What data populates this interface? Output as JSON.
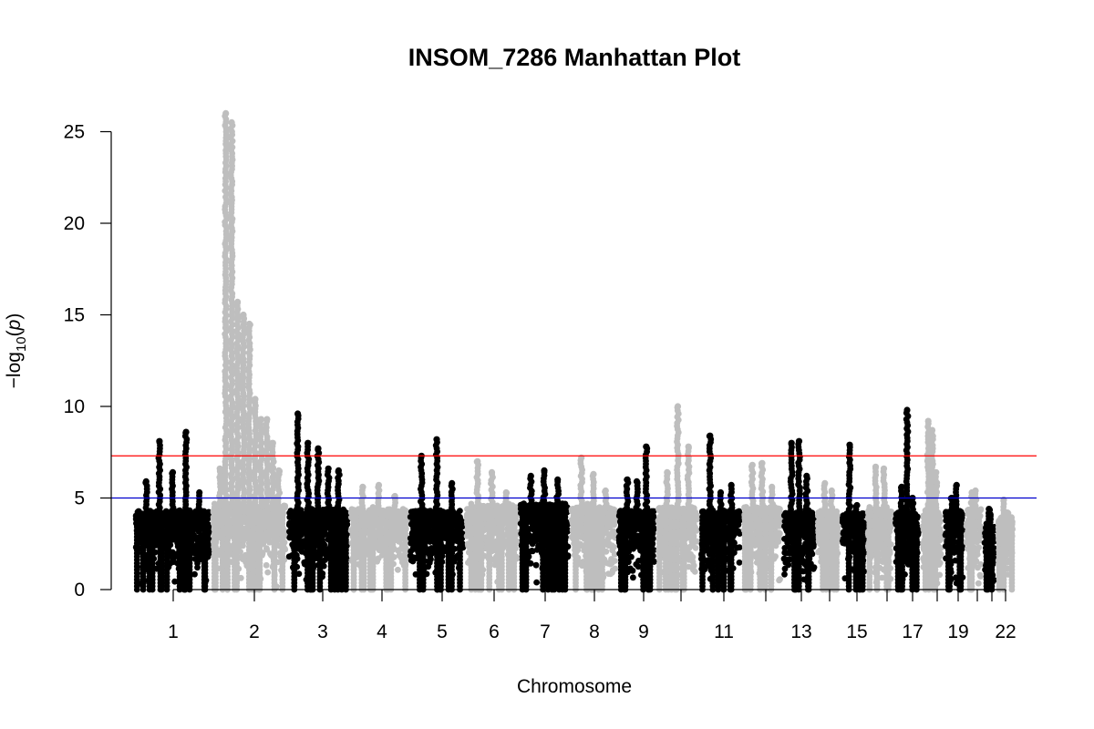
{
  "chart_data": {
    "type": "scatter",
    "title": "INSOM_7286 Manhattan Plot",
    "xlabel": "Chromosome",
    "ylabel": {
      "prefix": "−log",
      "subscript": "10",
      "open": "(",
      "var": "p",
      "close": ")"
    },
    "ylim": [
      0,
      26
    ],
    "yticks": [
      0,
      5,
      10,
      15,
      20,
      25
    ],
    "xtick_labels": [
      "1",
      "2",
      "3",
      "4",
      "5",
      "6",
      "7",
      "8",
      "9",
      "",
      "11",
      "",
      "13",
      "",
      "15",
      "",
      "17",
      "",
      "19",
      "",
      "",
      "22"
    ],
    "point_colors": [
      "#000000",
      "#bebebe"
    ],
    "threshold_lines": [
      {
        "value": 7.3,
        "color": "#ff0000"
      },
      {
        "value": 5.0,
        "color": "#0000cd"
      }
    ],
    "chromosomes": [
      {
        "chr": 1,
        "bulk": 4.3,
        "peaks": [
          5.9,
          8.1,
          6.4,
          8.6,
          5.3
        ]
      },
      {
        "chr": 2,
        "bulk": 4.6,
        "peaks": [
          6.6,
          26.0,
          25.5,
          15.7,
          15.0,
          14.5,
          10.4,
          9.3,
          9.3,
          8.0,
          6.5
        ]
      },
      {
        "chr": 3,
        "bulk": 4.4,
        "peaks": [
          9.6,
          8.0,
          7.7,
          6.6,
          6.5
        ]
      },
      {
        "chr": 4,
        "bulk": 4.4,
        "peaks": [
          5.6,
          5.7,
          5.1
        ]
      },
      {
        "chr": 5,
        "bulk": 4.3,
        "peaks": [
          7.3,
          8.2,
          5.8
        ]
      },
      {
        "chr": 6,
        "bulk": 4.6,
        "peaks": [
          7.0,
          6.4,
          5.3
        ]
      },
      {
        "chr": 7,
        "bulk": 4.7,
        "peaks": [
          6.2,
          6.5,
          6.0
        ]
      },
      {
        "chr": 8,
        "bulk": 4.5,
        "peaks": [
          7.2,
          6.3,
          5.4
        ]
      },
      {
        "chr": 9,
        "bulk": 4.3,
        "peaks": [
          6.0,
          5.9,
          7.8
        ]
      },
      {
        "chr": 10,
        "bulk": 4.5,
        "peaks": [
          6.4,
          10.0,
          7.8
        ]
      },
      {
        "chr": 11,
        "bulk": 4.3,
        "peaks": [
          8.4,
          5.3,
          5.7
        ]
      },
      {
        "chr": 12,
        "bulk": 4.5,
        "peaks": [
          6.8,
          6.9,
          5.6
        ]
      },
      {
        "chr": 13,
        "bulk": 4.2,
        "peaks": [
          8.0,
          8.1,
          6.2
        ]
      },
      {
        "chr": 14,
        "bulk": 4.3,
        "peaks": [
          5.8,
          5.4
        ]
      },
      {
        "chr": 15,
        "bulk": 4.2,
        "peaks": [
          7.9,
          4.6
        ]
      },
      {
        "chr": 16,
        "bulk": 4.4,
        "peaks": [
          6.7,
          6.6
        ]
      },
      {
        "chr": 17,
        "bulk": 4.2,
        "peaks": [
          5.6,
          9.8,
          5.0
        ]
      },
      {
        "chr": 18,
        "bulk": 4.3,
        "peaks": [
          9.2,
          8.7,
          6.4
        ]
      },
      {
        "chr": 19,
        "bulk": 4.3,
        "peaks": [
          5.0,
          5.7
        ]
      },
      {
        "chr": 20,
        "bulk": 4.4,
        "peaks": [
          5.3,
          5.4
        ]
      },
      {
        "chr": 21,
        "bulk": 3.5,
        "peaks": [
          4.4,
          4.1
        ]
      },
      {
        "chr": 22,
        "bulk": 4.0,
        "peaks": [
          4.9,
          4.2
        ]
      }
    ]
  }
}
